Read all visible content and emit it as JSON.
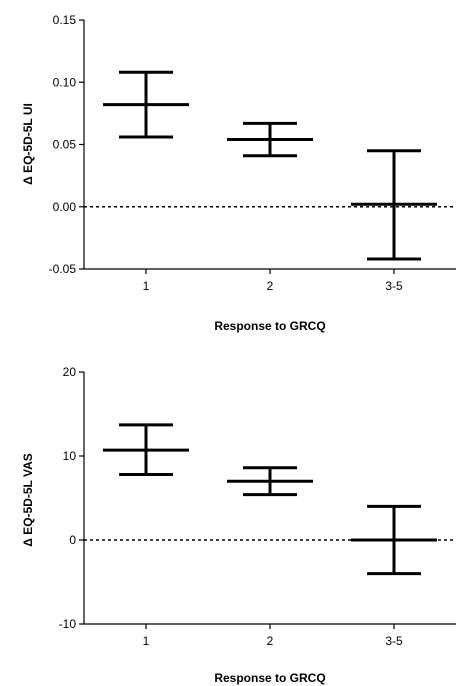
{
  "chart_data": [
    {
      "type": "errorbar",
      "categories": [
        "1",
        "2",
        "3-5"
      ],
      "series": [
        {
          "mean": [
            0.082,
            0.054,
            0.002
          ],
          "lower": [
            0.056,
            0.041,
            -0.042
          ],
          "upper": [
            0.108,
            0.067,
            0.045
          ]
        }
      ],
      "xlabel": "Response to GRCQ",
      "ylabel": "Δ EQ-5D-5L UI",
      "ylim": [
        -0.05,
        0.15
      ],
      "yticks": [
        -0.05,
        0.0,
        0.05,
        0.1,
        0.15
      ],
      "ytick_labels": [
        "-0.05",
        "0.00",
        "0.05",
        "0.10",
        "0.15"
      ],
      "reference_line": 0,
      "grid": false
    },
    {
      "type": "errorbar",
      "categories": [
        "1",
        "2",
        "3-5"
      ],
      "series": [
        {
          "mean": [
            10.7,
            7.0,
            0.0
          ],
          "lower": [
            7.8,
            5.4,
            -4.0
          ],
          "upper": [
            13.7,
            8.6,
            4.0
          ]
        }
      ],
      "xlabel": "Response to GRCQ",
      "ylabel": "Δ EQ-5D-5L VAS",
      "ylim": [
        -10,
        20
      ],
      "yticks": [
        -10,
        0,
        10,
        20
      ],
      "ytick_labels": [
        "-10",
        "0",
        "10",
        "20"
      ],
      "reference_line": 0,
      "grid": false
    }
  ]
}
